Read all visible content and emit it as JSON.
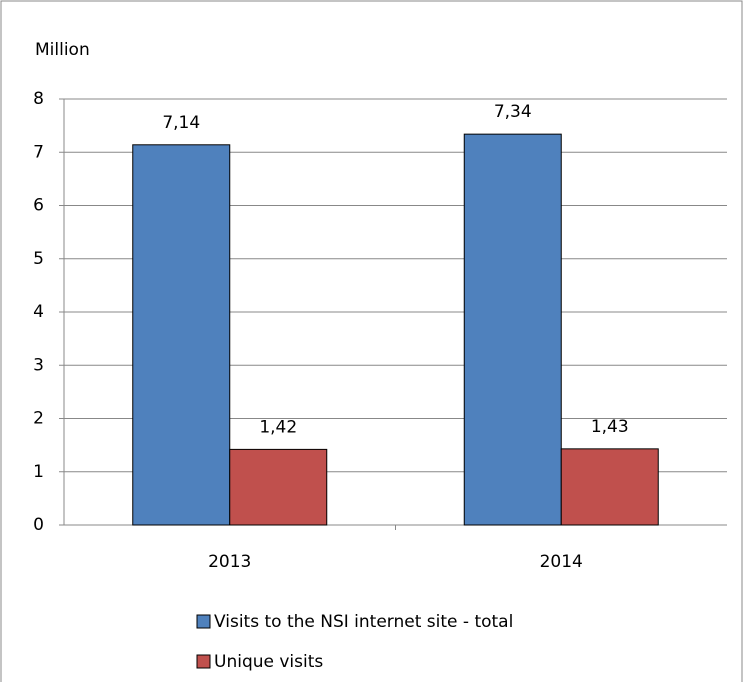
{
  "chart_data": {
    "type": "bar",
    "y_label": "Million",
    "categories": [
      "2013",
      "2014"
    ],
    "series": [
      {
        "name": "Visits to the NSI internet site - total",
        "color": "#4f81bd",
        "values": [
          7.14,
          7.34
        ],
        "value_labels": [
          "7,14",
          "7,34"
        ]
      },
      {
        "name": "Unique visits",
        "color": "#c0504d",
        "values": [
          1.42,
          1.43
        ],
        "value_labels": [
          "1,42",
          "1,43"
        ]
      }
    ],
    "ylim": [
      0,
      8
    ],
    "yticks": [
      0,
      1,
      2,
      3,
      4,
      5,
      6,
      7,
      8
    ],
    "grid": true,
    "legend": "bottom"
  }
}
